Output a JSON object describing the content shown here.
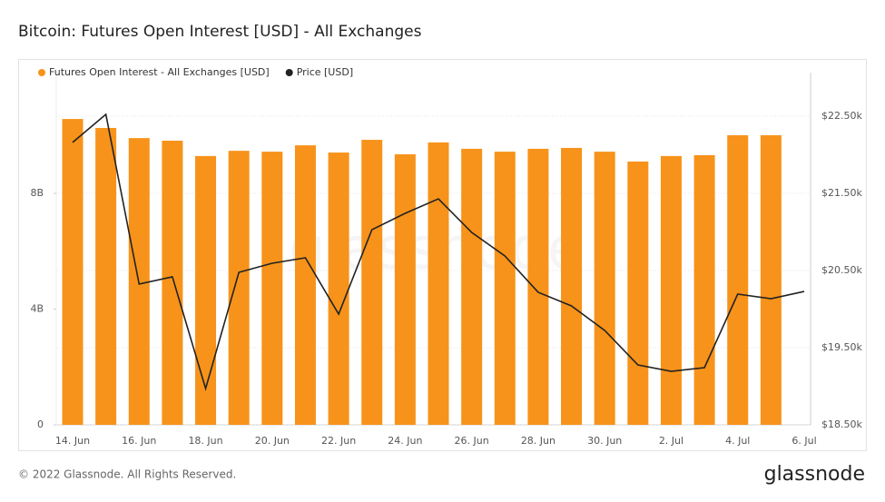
{
  "chart_data": {
    "type": "bar-line",
    "title": "Bitcoin: Futures Open Interest [USD] - All Exchanges",
    "watermark": "glassnode",
    "footer": "© 2022 Glassnode. All Rights Reserved.",
    "brand": "glassnode",
    "categories": [
      "14. Jun",
      null,
      "16. Jun",
      null,
      "18. Jun",
      null,
      "20. Jun",
      null,
      "22. Jun",
      null,
      "24. Jun",
      null,
      "26. Jun",
      null,
      "28. Jun",
      null,
      "30. Jun",
      null,
      "2. Jul",
      null,
      "4. Jul",
      null,
      "6. Jul"
    ],
    "series": [
      {
        "name": "Futures Open Interest - All Exchanges [USD]",
        "color": "#f7931a",
        "type": "bar",
        "values": [
          10570000000,
          10260000000,
          9910000000,
          9820000000,
          9290000000,
          9470000000,
          9440000000,
          9660000000,
          9410000000,
          9850000000,
          9350000000,
          9760000000,
          9540000000,
          9440000000,
          9540000000,
          9570000000,
          9440000000,
          9100000000,
          9290000000,
          9320000000,
          10010000000,
          10010000000,
          null
        ]
      },
      {
        "name": "Price [USD]",
        "color": "#222222",
        "type": "line",
        "axis": "y2",
        "values": [
          22160,
          22524,
          20324,
          20418,
          18971,
          20476,
          20594,
          20665,
          19935,
          21029,
          21241,
          21429,
          20994,
          20688,
          20218,
          20041,
          19724,
          19276,
          19194,
          19241,
          20194,
          20135,
          20229
        ]
      }
    ],
    "ylim": [
      0,
      12000000000
    ],
    "yticks": [
      0,
      {
        "value": 4000000000,
        "label": "4B"
      },
      {
        "value": 8000000000,
        "label": "8B"
      }
    ],
    "y2lim": [
      18500,
      23000
    ],
    "y2ticks": [
      {
        "value": 18500,
        "label": "$18.50k"
      },
      {
        "value": 19500,
        "label": "$19.50k"
      },
      {
        "value": 20500,
        "label": "$20.50k"
      },
      {
        "value": 21500,
        "label": "$21.50k"
      },
      {
        "value": 22500,
        "label": "$22.50k"
      }
    ],
    "grid": true,
    "legend": "top-left"
  }
}
